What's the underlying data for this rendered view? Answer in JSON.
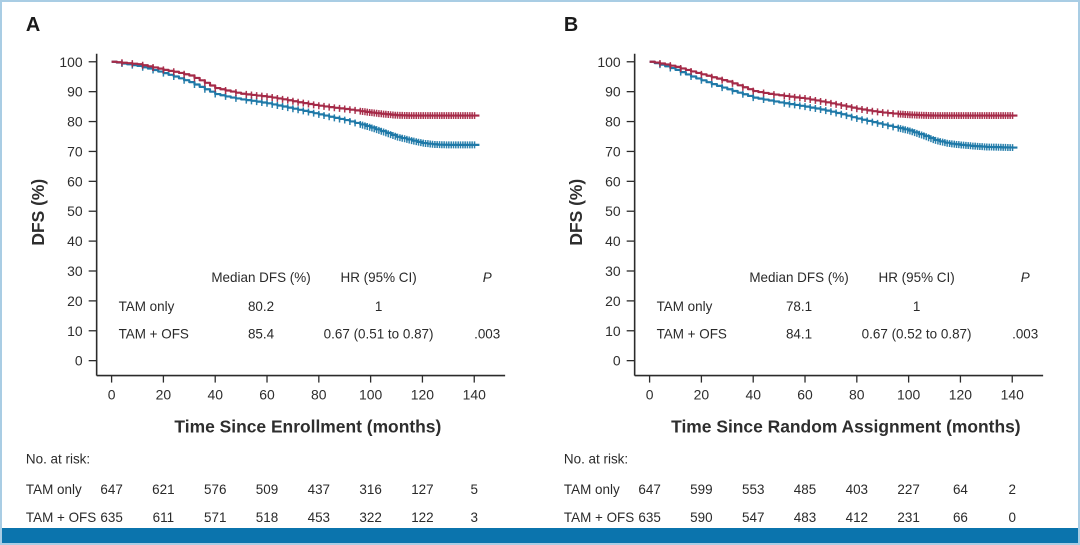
{
  "figure": {
    "border_color": "#a9cde4",
    "bottom_bar_color": "#0b74ad",
    "background": "#ffffff"
  },
  "colors": {
    "tam_only": "#1f79a8",
    "tam_ofs": "#a52a48",
    "axis": "#2b2b2b",
    "text": "#2a2a2a"
  },
  "chart_data": [
    {
      "type": "line",
      "panel_label": "A",
      "xlabel": "Time Since Enrollment (months)",
      "ylabel": "DFS (%)",
      "xlim": [
        0,
        145
      ],
      "ylim": [
        0,
        100
      ],
      "grid": "off",
      "xticks": [
        0,
        20,
        40,
        60,
        80,
        100,
        120,
        140
      ],
      "yticks": [
        0,
        10,
        20,
        30,
        40,
        50,
        60,
        70,
        80,
        90,
        100
      ],
      "series": [
        {
          "name": "TAM only",
          "color_key": "tam_only",
          "x": [
            0,
            5,
            10,
            15,
            20,
            25,
            30,
            35,
            40,
            45,
            50,
            55,
            60,
            65,
            70,
            75,
            80,
            85,
            90,
            95,
            100,
            105,
            110,
            115,
            120,
            125,
            130,
            135,
            140,
            142
          ],
          "y": [
            100,
            99.3,
            98.6,
            97.5,
            96.2,
            94.8,
            93.2,
            91.2,
            89.2,
            88.2,
            87.4,
            86.8,
            86.1,
            85.2,
            84.3,
            83.4,
            82.4,
            81.4,
            80.5,
            79.3,
            78.0,
            76.5,
            74.9,
            73.8,
            72.8,
            72.3,
            72.2,
            72.2,
            72.2,
            72.2
          ]
        },
        {
          "name": "TAM + OFS",
          "color_key": "tam_ofs",
          "x": [
            0,
            5,
            10,
            15,
            20,
            25,
            30,
            35,
            40,
            45,
            50,
            55,
            60,
            65,
            70,
            75,
            80,
            85,
            90,
            95,
            100,
            105,
            110,
            115,
            120,
            125,
            130,
            135,
            140,
            142
          ],
          "y": [
            100,
            99.6,
            99.2,
            98.3,
            97.3,
            96.5,
            95.4,
            93.4,
            91.2,
            90.2,
            89.3,
            88.8,
            88.3,
            87.6,
            86.8,
            86.0,
            85.3,
            84.7,
            84.2,
            83.6,
            83.0,
            82.5,
            82.1,
            82.0,
            82.0,
            82.0,
            82.0,
            82.0,
            82.0,
            82.0
          ]
        }
      ],
      "stats_table": {
        "headers": [
          "Median DFS (%)",
          "HR (95% CI)",
          "P"
        ],
        "rows": [
          {
            "group": "TAM only",
            "median_dfs": "80.2",
            "hr": "1",
            "p": ""
          },
          {
            "group": "TAM + OFS",
            "median_dfs": "85.4",
            "hr": "0.67 (0.51 to 0.87)",
            "p": ".003"
          }
        ]
      },
      "risk_table": {
        "label": "No. at risk:",
        "rows": [
          {
            "group": "TAM only",
            "counts": [
              "647",
              "621",
              "576",
              "509",
              "437",
              "316",
              "127",
              "5"
            ]
          },
          {
            "group": "TAM + OFS",
            "counts": [
              "635",
              "611",
              "571",
              "518",
              "453",
              "322",
              "122",
              "3"
            ]
          }
        ]
      }
    },
    {
      "type": "line",
      "panel_label": "B",
      "xlabel": "Time Since Random Assignment (months)",
      "ylabel": "DFS (%)",
      "xlim": [
        0,
        145
      ],
      "ylim": [
        0,
        100
      ],
      "grid": "off",
      "xticks": [
        0,
        20,
        40,
        60,
        80,
        100,
        120,
        140
      ],
      "yticks": [
        0,
        10,
        20,
        30,
        40,
        50,
        60,
        70,
        80,
        90,
        100
      ],
      "series": [
        {
          "name": "TAM only",
          "color_key": "tam_only",
          "x": [
            0,
            5,
            10,
            15,
            20,
            25,
            30,
            35,
            40,
            45,
            50,
            55,
            60,
            65,
            70,
            75,
            80,
            85,
            90,
            95,
            100,
            105,
            110,
            115,
            120,
            125,
            130,
            135,
            140,
            142
          ],
          "y": [
            100,
            98.8,
            97.3,
            95.4,
            93.8,
            92.2,
            90.8,
            89.4,
            88.0,
            87.2,
            86.4,
            85.7,
            85.0,
            84.2,
            83.3,
            82.2,
            81.0,
            80.0,
            79.0,
            78.0,
            77.0,
            75.5,
            73.8,
            72.7,
            72.2,
            71.8,
            71.5,
            71.4,
            71.3,
            71.3
          ]
        },
        {
          "name": "TAM + OFS",
          "color_key": "tam_ofs",
          "x": [
            0,
            5,
            10,
            15,
            20,
            25,
            30,
            35,
            40,
            45,
            50,
            55,
            60,
            65,
            70,
            75,
            80,
            85,
            90,
            95,
            100,
            105,
            110,
            115,
            120,
            125,
            130,
            135,
            140,
            142
          ],
          "y": [
            100,
            99.3,
            98.3,
            97.0,
            95.8,
            94.6,
            93.4,
            91.8,
            90.2,
            89.4,
            88.8,
            88.2,
            87.7,
            86.9,
            86.1,
            85.2,
            84.3,
            83.6,
            83.0,
            82.6,
            82.3,
            82.1,
            82.0,
            82.0,
            82.0,
            82.0,
            82.0,
            82.0,
            82.0,
            82.0
          ]
        }
      ],
      "stats_table": {
        "headers": [
          "Median DFS (%)",
          "HR (95% CI)",
          "P"
        ],
        "rows": [
          {
            "group": "TAM only",
            "median_dfs": "78.1",
            "hr": "1",
            "p": ""
          },
          {
            "group": "TAM + OFS",
            "median_dfs": "84.1",
            "hr": "0.67 (0.52 to 0.87)",
            "p": ".003"
          }
        ]
      },
      "risk_table": {
        "label": "No. at risk:",
        "rows": [
          {
            "group": "TAM only",
            "counts": [
              "647",
              "599",
              "553",
              "485",
              "403",
              "227",
              "64",
              "2"
            ]
          },
          {
            "group": "TAM + OFS",
            "counts": [
              "635",
              "590",
              "547",
              "483",
              "412",
              "231",
              "66",
              "0"
            ]
          }
        ]
      }
    }
  ]
}
